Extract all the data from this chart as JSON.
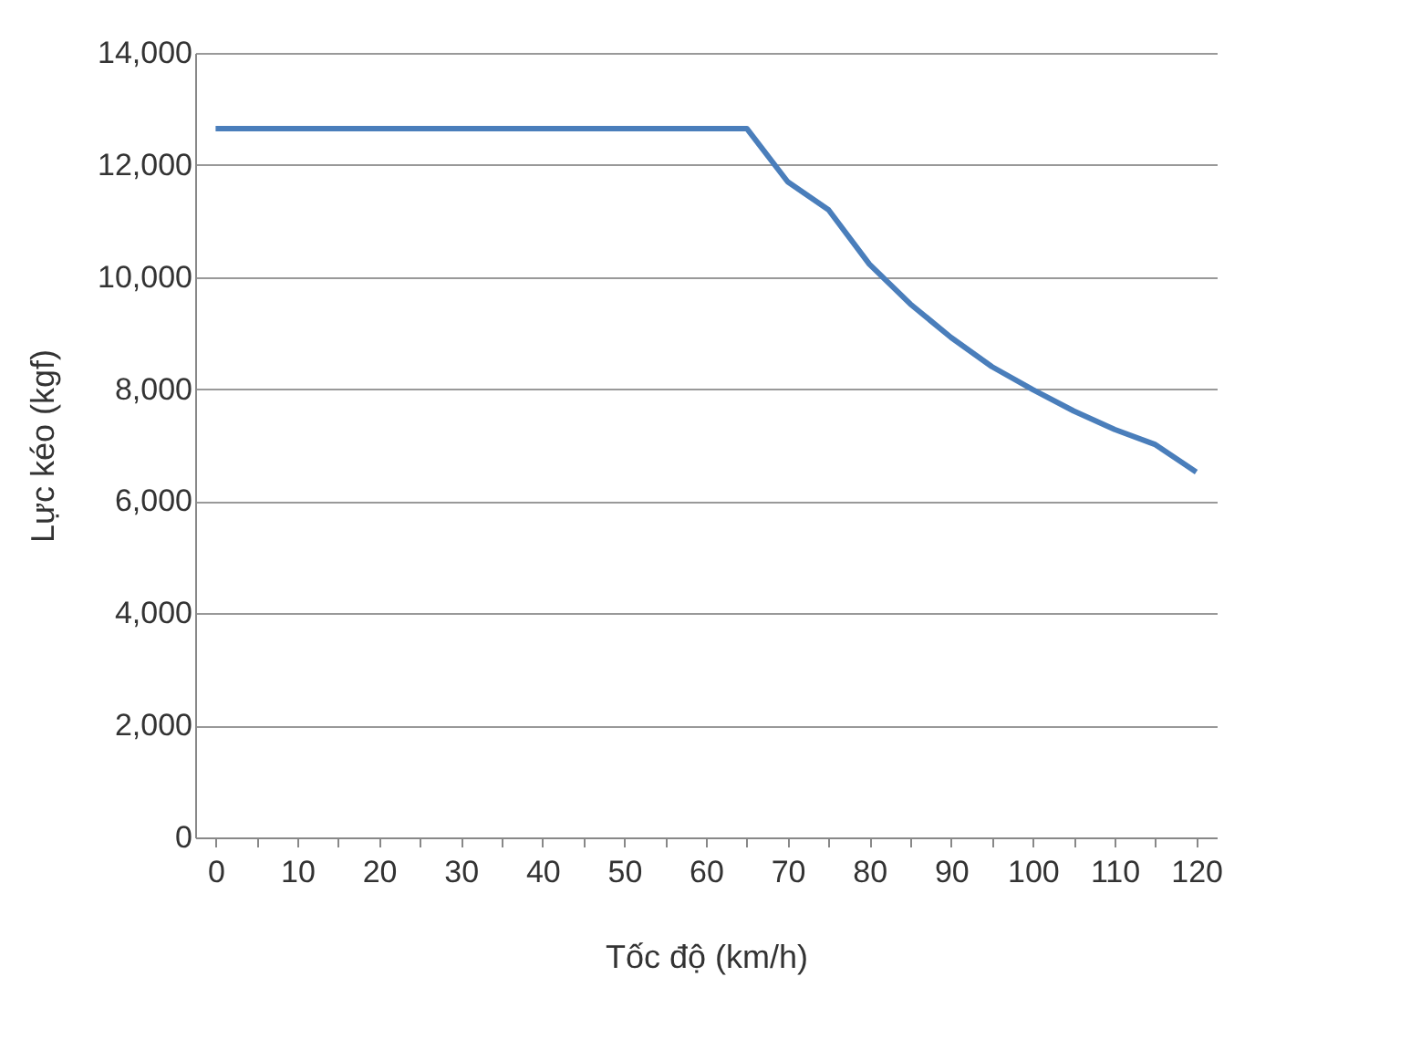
{
  "chart_data": {
    "type": "line",
    "xlabel": "Tốc độ (km/h)",
    "ylabel": "Lực kéo (kgf)",
    "categories": [
      "0",
      null,
      "10",
      null,
      "20",
      null,
      "30",
      null,
      "40",
      null,
      "50",
      null,
      "60",
      null,
      "70",
      null,
      "80",
      null,
      "90",
      null,
      "100",
      null,
      "110",
      null,
      "120"
    ],
    "series": [
      {
        "color": "#4a7ebb",
        "values": [
          12650,
          12650,
          12650,
          12650,
          12650,
          12650,
          12650,
          12650,
          12650,
          12650,
          12650,
          12650,
          12650,
          12650,
          11700,
          11200,
          10230,
          9520,
          8920,
          8400,
          7990,
          7610,
          7280,
          7010,
          6520
        ]
      }
    ],
    "ylim": [
      0,
      14000
    ],
    "yticks": [
      0,
      {
        "value": 2000,
        "label": "2,000"
      },
      {
        "value": 4000,
        "label": "4,000"
      },
      {
        "value": 6000,
        "label": "6,000"
      },
      {
        "value": 8000,
        "label": "8,000"
      },
      {
        "value": 10000,
        "label": "10,000"
      },
      {
        "value": 12000,
        "label": "12,000"
      },
      {
        "value": 14000,
        "label": "14,000"
      }
    ],
    "grid": "y",
    "marker": "none",
    "line_style": "solid"
  }
}
